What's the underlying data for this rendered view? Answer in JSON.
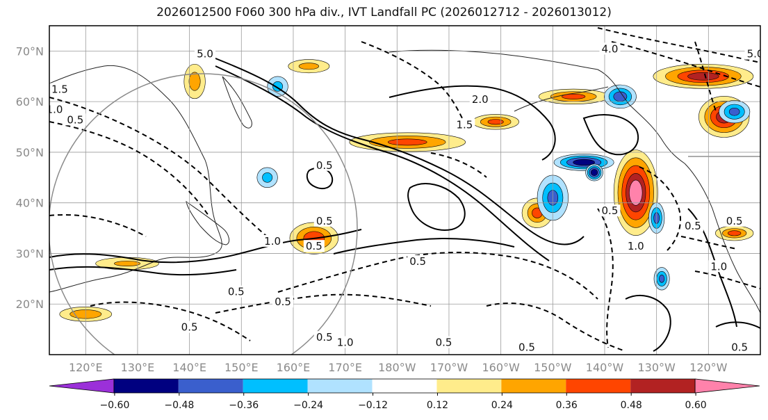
{
  "title": "2026012500 F060 300 hPa div., IVT Landfall PC (2026012712 - 2026013012)",
  "lat_labels": [
    "70°N",
    "60°N",
    "50°N",
    "40°N",
    "30°N",
    "20°N"
  ],
  "lon_labels": [
    "120°E",
    "130°E",
    "140°E",
    "150°E",
    "160°E",
    "170°E",
    "180°W",
    "170°W",
    "160°W",
    "150°W",
    "140°W",
    "130°W",
    "120°W"
  ],
  "colorbar": {
    "colors": [
      "#9b30d9",
      "#000080",
      "#3a5fcd",
      "#00bfff",
      "#b0e2ff",
      "#ffffff",
      "#ffec8b",
      "#ffa500",
      "#ff4500",
      "#b22222",
      "#ff82ab"
    ],
    "ticks": [
      "−0.60",
      "−0.48",
      "−0.36",
      "−0.24",
      "−0.12",
      "0.12",
      "0.24",
      "0.36",
      "0.48",
      "0.60"
    ]
  },
  "contour_labels": [
    {
      "text": "1.5",
      "lon": 115,
      "lat": 62
    },
    {
      "text": "1.0",
      "lon": 114,
      "lat": 58
    },
    {
      "text": "0.5",
      "lon": 118,
      "lat": 56
    },
    {
      "text": "5.0",
      "lon": 143,
      "lat": 69
    },
    {
      "text": "2.0",
      "lon": 196,
      "lat": 60
    },
    {
      "text": "1.5",
      "lon": 193,
      "lat": 55
    },
    {
      "text": "0.5",
      "lon": 166,
      "lat": 47
    },
    {
      "text": "0.5",
      "lon": 221,
      "lat": 38
    },
    {
      "text": "0.5",
      "lon": 166,
      "lat": 36
    },
    {
      "text": "1.0",
      "lon": 156,
      "lat": 32
    },
    {
      "text": "0.5",
      "lon": 164,
      "lat": 31
    },
    {
      "text": "0.5",
      "lon": 184,
      "lat": 28
    },
    {
      "text": "0.5",
      "lon": 149,
      "lat": 22
    },
    {
      "text": "0.5",
      "lon": 158,
      "lat": 20
    },
    {
      "text": "0.5",
      "lon": 140,
      "lat": 15
    },
    {
      "text": "0.5",
      "lon": 166,
      "lat": 13
    },
    {
      "text": "1.0",
      "lon": 170,
      "lat": 12
    },
    {
      "text": "0.5",
      "lon": 189,
      "lat": 12
    },
    {
      "text": "0.5",
      "lon": 205,
      "lat": 11
    },
    {
      "text": "0.5",
      "lon": 237,
      "lat": 35
    },
    {
      "text": "1.0",
      "lon": 242,
      "lat": 27
    },
    {
      "text": "0.5",
      "lon": 245,
      "lat": 36
    },
    {
      "text": "0.5",
      "lon": 246,
      "lat": 11
    },
    {
      "text": "1.0",
      "lon": 226,
      "lat": 31
    },
    {
      "text": "4.0",
      "lon": 221,
      "lat": 70
    },
    {
      "text": "5.0",
      "lon": 249,
      "lat": 69
    }
  ],
  "chart_data": {
    "type": "heatmap",
    "title": "2026012500 F060 300 hPa div., IVT Landfall PC (2026012712 - 2026013012)",
    "lon_range": [
      113,
      250
    ],
    "lat_range": [
      10,
      75
    ],
    "levels": [
      -0.6,
      -0.48,
      -0.36,
      -0.24,
      -0.12,
      0.12,
      0.24,
      0.36,
      0.48,
      0.6
    ],
    "blobs": [
      {
        "lon": 226,
        "lat": 42,
        "rx": 5,
        "ry": 10,
        "value": 0.66
      },
      {
        "lon": 243,
        "lat": 57,
        "rx": 6,
        "ry": 5,
        "value": 0.54
      },
      {
        "lon": 239,
        "lat": 65,
        "rx": 12,
        "ry": 3,
        "value": 0.52
      },
      {
        "lon": 164,
        "lat": 33,
        "rx": 6,
        "ry": 4,
        "value": 0.46
      },
      {
        "lon": 182,
        "lat": 52,
        "rx": 15,
        "ry": 2.5,
        "value": 0.4
      },
      {
        "lon": 199,
        "lat": 56,
        "rx": 6,
        "ry": 2,
        "value": 0.4
      },
      {
        "lon": 207,
        "lat": 38,
        "rx": 4,
        "ry": 4,
        "value": 0.38
      },
      {
        "lon": 214,
        "lat": 61,
        "rx": 9,
        "ry": 2,
        "value": 0.4
      },
      {
        "lon": 245,
        "lat": 34,
        "rx": 5,
        "ry": 2,
        "value": 0.38
      },
      {
        "lon": 120,
        "lat": 18,
        "rx": 7,
        "ry": 2,
        "value": 0.36
      },
      {
        "lon": 141,
        "lat": 64,
        "rx": 3,
        "ry": 5,
        "value": 0.32
      },
      {
        "lon": 128,
        "lat": 28,
        "rx": 10,
        "ry": 2,
        "value": 0.26
      },
      {
        "lon": 163,
        "lat": 67,
        "rx": 6,
        "ry": 2,
        "value": 0.3
      },
      {
        "lon": 216,
        "lat": 48,
        "rx": 7,
        "ry": 2,
        "value": -0.58
      },
      {
        "lon": 223,
        "lat": 61,
        "rx": 4,
        "ry": 3,
        "value": -0.45
      },
      {
        "lon": 210,
        "lat": 41,
        "rx": 4,
        "ry": 6,
        "value": -0.4
      },
      {
        "lon": 230,
        "lat": 37,
        "rx": 2,
        "ry": 4,
        "value": -0.42
      },
      {
        "lon": 245,
        "lat": 58,
        "rx": 4,
        "ry": 3,
        "value": -0.4
      },
      {
        "lon": 157,
        "lat": 63,
        "rx": 3,
        "ry": 3,
        "value": -0.3
      },
      {
        "lon": 155,
        "lat": 45,
        "rx": 3,
        "ry": 3,
        "value": -0.3
      },
      {
        "lon": 218,
        "lat": 46,
        "rx": 2,
        "ry": 2,
        "value": -0.6
      },
      {
        "lon": 231,
        "lat": 25,
        "rx": 2,
        "ry": 3,
        "value": -0.4
      }
    ]
  }
}
